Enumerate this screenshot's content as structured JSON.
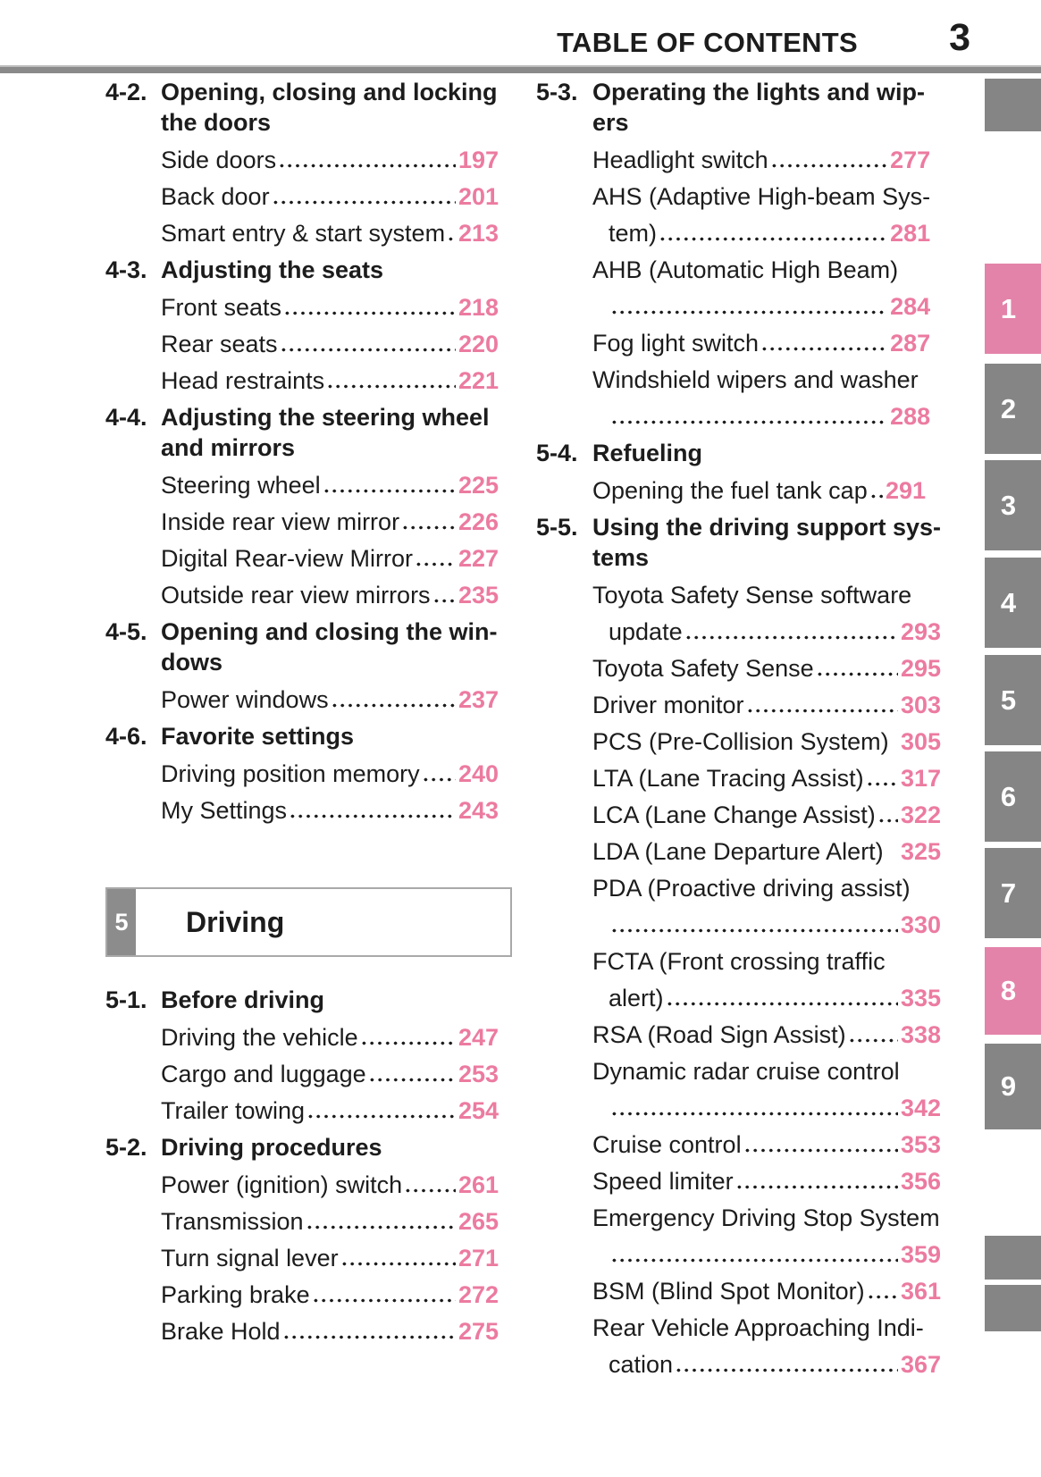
{
  "header": {
    "title": "TABLE OF CONTENTS",
    "page_number": "3"
  },
  "colors": {
    "page_number_pink": "#ec7ba0",
    "tab_pink": "#e383a9",
    "tab_gray": "#858585",
    "rule_gray": "#8a8a8a",
    "text": "#1c1c1c",
    "chapter_num_bg": "#8c8c8c",
    "box_border": "#a9a9a9"
  },
  "columns": {
    "left": {
      "blocks": [
        {
          "type": "section",
          "num": "4-2.",
          "title_lines": [
            "Opening, closing and locking",
            "the doors"
          ],
          "items": [
            {
              "lines": [
                {
                  "text": "Side doors",
                  "page": "197"
                }
              ]
            },
            {
              "lines": [
                {
                  "text": "Back door",
                  "page": "201"
                }
              ]
            },
            {
              "lines": [
                {
                  "text": "Smart entry & start system ",
                  "page": "213"
                }
              ]
            }
          ]
        },
        {
          "type": "section",
          "num": "4-3.",
          "title_lines": [
            "Adjusting the seats"
          ],
          "items": [
            {
              "lines": [
                {
                  "text": "Front seats",
                  "page": "218"
                }
              ]
            },
            {
              "lines": [
                {
                  "text": "Rear seats ",
                  "page": "220"
                }
              ]
            },
            {
              "lines": [
                {
                  "text": "Head restraints ",
                  "page": "221"
                }
              ]
            }
          ]
        },
        {
          "type": "section",
          "num": "4-4.",
          "title_lines": [
            "Adjusting the steering wheel",
            "and mirrors"
          ],
          "items": [
            {
              "lines": [
                {
                  "text": "Steering wheel",
                  "page": "225"
                }
              ]
            },
            {
              "lines": [
                {
                  "text": "Inside rear view mirror ",
                  "page": "226"
                }
              ]
            },
            {
              "lines": [
                {
                  "text": "Digital Rear-view Mirror ",
                  "page": "227"
                }
              ]
            },
            {
              "lines": [
                {
                  "text": "Outside rear view mirrors",
                  "page": "235"
                }
              ]
            }
          ]
        },
        {
          "type": "section",
          "num": "4-5.",
          "title_lines": [
            "Opening and closing the win-",
            "dows"
          ],
          "items": [
            {
              "lines": [
                {
                  "text": "Power windows",
                  "page": "237"
                }
              ]
            }
          ]
        },
        {
          "type": "section",
          "num": "4-6.",
          "title_lines": [
            "Favorite settings"
          ],
          "items": [
            {
              "lines": [
                {
                  "text": "Driving position memory ",
                  "page": "240"
                }
              ]
            },
            {
              "lines": [
                {
                  "text": "My Settings ",
                  "page": "243"
                }
              ]
            }
          ]
        },
        {
          "type": "chapter",
          "num": "5",
          "title": "Driving"
        },
        {
          "type": "section",
          "num": "5-1.",
          "title_lines": [
            "Before driving"
          ],
          "items": [
            {
              "lines": [
                {
                  "text": "Driving the vehicle ",
                  "page": "247"
                }
              ]
            },
            {
              "lines": [
                {
                  "text": "Cargo and luggage ",
                  "page": "253"
                }
              ]
            },
            {
              "lines": [
                {
                  "text": "Trailer towing ",
                  "page": "254"
                }
              ]
            }
          ]
        },
        {
          "type": "section",
          "num": "5-2.",
          "title_lines": [
            "Driving procedures"
          ],
          "items": [
            {
              "lines": [
                {
                  "text": "Power (ignition) switch",
                  "page": "261"
                }
              ]
            },
            {
              "lines": [
                {
                  "text": "Transmission",
                  "page": "265"
                }
              ]
            },
            {
              "lines": [
                {
                  "text": "Turn signal lever ",
                  "page": "271"
                }
              ]
            },
            {
              "lines": [
                {
                  "text": "Parking brake",
                  "page": "272"
                }
              ]
            },
            {
              "lines": [
                {
                  "text": "Brake Hold ",
                  "page": "275"
                }
              ]
            }
          ]
        }
      ]
    },
    "right": {
      "blocks": [
        {
          "type": "section",
          "num": "5-3.",
          "title_lines": [
            "Operating the lights and wip-",
            "ers"
          ],
          "items": [
            {
              "lines": [
                {
                  "text": "Headlight switch",
                  "page": "277"
                }
              ]
            },
            {
              "lines": [
                {
                  "text": "AHS (Adaptive High-beam Sys-"
                },
                {
                  "text": "tem) ",
                  "page": "281",
                  "cont": true
                }
              ]
            },
            {
              "lines": [
                {
                  "text": "AHB (Automatic High Beam)"
                },
                {
                  "text": "",
                  "page": "284",
                  "cont": true
                }
              ]
            },
            {
              "lines": [
                {
                  "text": "Fog light switch ",
                  "page": "287"
                }
              ]
            },
            {
              "lines": [
                {
                  "text": "Windshield wipers and washer"
                },
                {
                  "text": "",
                  "page": "288",
                  "cont": true
                }
              ]
            }
          ]
        },
        {
          "type": "section",
          "num": "5-4.",
          "title_lines": [
            "Refueling"
          ],
          "items": [
            {
              "lines": [
                {
                  "text": "Opening the fuel tank cap",
                  "page": "291"
                }
              ]
            }
          ]
        },
        {
          "type": "section",
          "num": "5-5.",
          "title_lines": [
            "Using the driving support sys-",
            "tems"
          ],
          "items": [
            {
              "lines": [
                {
                  "text": "Toyota Safety Sense software"
                },
                {
                  "text": "update",
                  "page": "293",
                  "cont": true
                }
              ]
            },
            {
              "lines": [
                {
                  "text": "Toyota Safety Sense",
                  "page": "295"
                }
              ]
            },
            {
              "lines": [
                {
                  "text": "Driver monitor ",
                  "page": "303"
                }
              ]
            },
            {
              "lines": [
                {
                  "text": "PCS (Pre-Collision System)",
                  "page": "305",
                  "dots": false
                }
              ]
            },
            {
              "lines": [
                {
                  "text": "LTA (Lane Tracing Assist) ",
                  "page": "317"
                }
              ]
            },
            {
              "lines": [
                {
                  "text": "LCA (Lane Change Assist)",
                  "page": "322"
                }
              ]
            },
            {
              "lines": [
                {
                  "text": "LDA (Lane Departure Alert) ",
                  "page": "325",
                  "dots": false
                }
              ]
            },
            {
              "lines": [
                {
                  "text": "PDA (Proactive driving assist)"
                },
                {
                  "text": "",
                  "page": "330",
                  "cont": true
                }
              ]
            },
            {
              "lines": [
                {
                  "text": "FCTA (Front crossing traffic"
                },
                {
                  "text": "alert) ",
                  "page": "335",
                  "cont": true
                }
              ]
            },
            {
              "lines": [
                {
                  "text": "RSA (Road Sign Assist) ",
                  "page": "338"
                }
              ]
            },
            {
              "lines": [
                {
                  "text": "Dynamic radar cruise control"
                },
                {
                  "text": "",
                  "page": "342",
                  "cont": true
                }
              ]
            },
            {
              "lines": [
                {
                  "text": "Cruise control",
                  "page": "353"
                }
              ]
            },
            {
              "lines": [
                {
                  "text": "Speed limiter",
                  "page": "356"
                }
              ]
            },
            {
              "lines": [
                {
                  "text": "Emergency Driving Stop System"
                },
                {
                  "text": "",
                  "page": "359",
                  "cont": true
                }
              ]
            },
            {
              "lines": [
                {
                  "text": "BSM (Blind Spot Monitor) ",
                  "page": "361"
                }
              ]
            },
            {
              "lines": [
                {
                  "text": "Rear Vehicle Approaching Indi-"
                },
                {
                  "text": "cation ",
                  "page": "367",
                  "cont": true
                }
              ]
            }
          ]
        }
      ]
    }
  },
  "side_tabs": [
    {
      "label": "",
      "active": false
    },
    {
      "label": "1",
      "active": true
    },
    {
      "label": "2",
      "active": false
    },
    {
      "label": "3",
      "active": false
    },
    {
      "label": "4",
      "active": false
    },
    {
      "label": "5",
      "active": false
    },
    {
      "label": "6",
      "active": false
    },
    {
      "label": "7",
      "active": false
    },
    {
      "label": "8",
      "active": true
    },
    {
      "label": "9",
      "active": false
    },
    {
      "label": "",
      "active": false
    },
    {
      "label": "",
      "active": false
    }
  ]
}
